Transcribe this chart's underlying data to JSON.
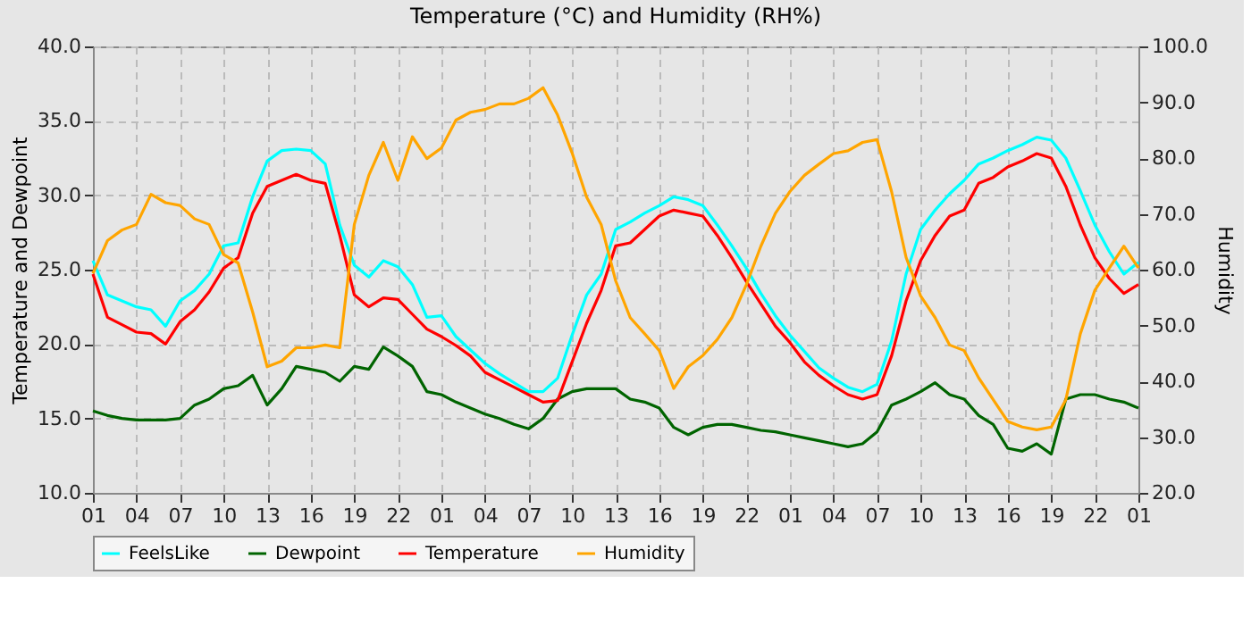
{
  "chart_data": {
    "type": "line",
    "title": "Temperature (°C) and Humidity (RH%)",
    "ylabel": "Temperature and Dewpoint",
    "y2label": "Humidity",
    "categories": [
      "01",
      null,
      null,
      "04",
      null,
      null,
      "07",
      null,
      null,
      "10",
      null,
      null,
      "13",
      null,
      null,
      "16",
      null,
      null,
      "19",
      null,
      null,
      "22",
      null,
      null,
      "01",
      null,
      null,
      "04",
      null,
      null,
      "07",
      null,
      null,
      "10",
      null,
      null,
      "13",
      null,
      null,
      "16",
      null,
      null,
      "19",
      null,
      null,
      "22",
      null,
      null,
      "01",
      null,
      null,
      "04",
      null,
      null,
      "07",
      null,
      null,
      "10",
      null,
      null,
      "13",
      null,
      null,
      "16",
      null,
      null,
      "19",
      null,
      null,
      "22",
      null,
      null,
      "01"
    ],
    "ylim": [
      10,
      40
    ],
    "yticks": [
      {
        "value": 10,
        "label": "10.0"
      },
      {
        "value": 15,
        "label": "15.0"
      },
      {
        "value": 20,
        "label": "20.0"
      },
      {
        "value": 25,
        "label": "25.0"
      },
      {
        "value": 30,
        "label": "30.0"
      },
      {
        "value": 35,
        "label": "35.0"
      },
      {
        "value": 40,
        "label": "40.0"
      }
    ],
    "y2lim": [
      20,
      100
    ],
    "y2ticks": [
      {
        "value": 20,
        "label": "20.0"
      },
      {
        "value": 30,
        "label": "30.0"
      },
      {
        "value": 40,
        "label": "40.0"
      },
      {
        "value": 50,
        "label": "50.0"
      },
      {
        "value": 60,
        "label": "60.0"
      },
      {
        "value": 70,
        "label": "70.0"
      },
      {
        "value": 80,
        "label": "80.0"
      },
      {
        "value": 90,
        "label": "90.0"
      },
      {
        "value": 100,
        "label": "100.0"
      }
    ],
    "grid": true,
    "legend": "bottom",
    "line_style": "solid",
    "marker": "none",
    "series": [
      {
        "name": "FeelsLike",
        "color": "#00ffff",
        "values": [
          25.6,
          23.3,
          22.9,
          22.5,
          22.3,
          21.2,
          22.9,
          23.6,
          24.7,
          26.6,
          26.8,
          29.9,
          32.3,
          33.0,
          33.1,
          33.0,
          32.1,
          28.0,
          25.3,
          24.5,
          25.6,
          25.2,
          24.0,
          21.8,
          21.9,
          20.5,
          19.6,
          18.7,
          18.0,
          17.4,
          16.8,
          16.8,
          17.7,
          20.6,
          23.3,
          24.7,
          27.7,
          28.2,
          28.8,
          29.3,
          29.9,
          29.7,
          29.3,
          28.0,
          26.6,
          25.1,
          23.4,
          21.9,
          20.6,
          19.5,
          18.4,
          17.7,
          17.1,
          16.8,
          17.3,
          20.2,
          24.7,
          27.7,
          29.0,
          30.1,
          31.0,
          32.1,
          32.5,
          33.0,
          33.4,
          33.9,
          33.7,
          32.5,
          30.3,
          28.0,
          26.2,
          24.7,
          25.5
        ]
      },
      {
        "name": "Dewpoint",
        "color": "#006400",
        "values": [
          15.5,
          15.2,
          15.0,
          14.9,
          14.9,
          14.9,
          15.0,
          15.9,
          16.3,
          17.0,
          17.2,
          17.9,
          15.9,
          17.0,
          18.5,
          18.3,
          18.1,
          17.5,
          18.5,
          18.3,
          19.8,
          19.2,
          18.5,
          16.8,
          16.6,
          16.1,
          15.7,
          15.3,
          15.0,
          14.6,
          14.3,
          15.0,
          16.3,
          16.8,
          17.0,
          17.0,
          17.0,
          16.3,
          16.1,
          15.7,
          14.4,
          13.9,
          14.4,
          14.6,
          14.6,
          14.4,
          14.2,
          14.1,
          13.9,
          13.7,
          13.5,
          13.3,
          13.1,
          13.3,
          14.1,
          15.9,
          16.3,
          16.8,
          17.4,
          16.6,
          16.3,
          15.2,
          14.6,
          13.0,
          12.8,
          13.3,
          12.6,
          16.3,
          16.6,
          16.6,
          16.3,
          16.1,
          15.7
        ]
      },
      {
        "name": "Temperature",
        "color": "#ff0000",
        "values": [
          24.7,
          21.8,
          21.3,
          20.8,
          20.7,
          20.0,
          21.5,
          22.3,
          23.5,
          25.1,
          25.8,
          28.8,
          30.6,
          31.0,
          31.4,
          31.0,
          30.8,
          27.3,
          23.3,
          22.5,
          23.1,
          23.0,
          22.0,
          21.0,
          20.5,
          19.9,
          19.2,
          18.1,
          17.6,
          17.1,
          16.6,
          16.1,
          16.2,
          18.8,
          21.4,
          23.6,
          26.6,
          26.8,
          27.7,
          28.6,
          29.0,
          28.8,
          28.6,
          27.3,
          25.8,
          24.2,
          22.7,
          21.2,
          20.1,
          18.8,
          17.9,
          17.2,
          16.6,
          16.3,
          16.6,
          19.2,
          22.9,
          25.6,
          27.3,
          28.6,
          29.0,
          30.8,
          31.2,
          31.9,
          32.3,
          32.8,
          32.5,
          30.6,
          28.0,
          25.8,
          24.4,
          23.4,
          24.0
        ]
      },
      {
        "name": "Humidity",
        "color": "#ffa500",
        "axis": "y2",
        "values": [
          59.3,
          65.2,
          67.1,
          68.1,
          73.5,
          72.0,
          71.5,
          69.1,
          68.1,
          62.7,
          61.2,
          52.4,
          42.6,
          43.6,
          46.0,
          46.0,
          46.5,
          46.0,
          68.1,
          76.9,
          82.8,
          76.0,
          83.8,
          79.9,
          81.8,
          86.8,
          88.2,
          88.7,
          89.7,
          89.7,
          90.7,
          92.6,
          87.7,
          80.9,
          73.0,
          68.1,
          58.0,
          51.4,
          48.5,
          45.5,
          38.7,
          42.6,
          44.6,
          47.5,
          51.4,
          57.3,
          64.2,
          70.1,
          74.0,
          76.9,
          78.9,
          80.8,
          81.3,
          82.8,
          83.3,
          74.0,
          62.2,
          55.3,
          51.4,
          46.5,
          45.5,
          40.6,
          36.7,
          32.8,
          31.8,
          31.3,
          31.8,
          36.7,
          48.5,
          56.3,
          60.3,
          64.2,
          60.3
        ]
      }
    ]
  }
}
